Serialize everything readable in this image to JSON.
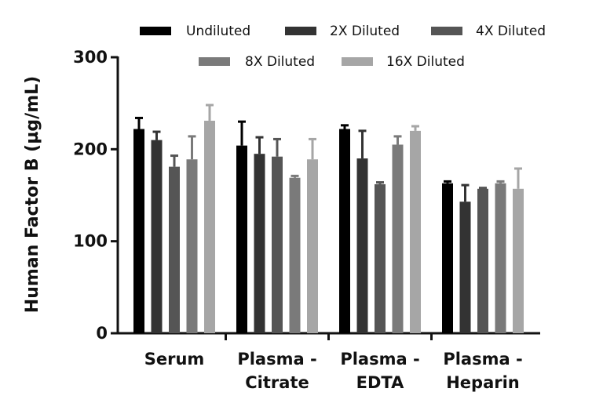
{
  "chart_data": {
    "type": "bar",
    "title": "",
    "xlabel": "",
    "ylabel": "Human Factor B (µg/mL)",
    "ylim": [
      0,
      300
    ],
    "yticks": [
      "0",
      "100",
      "200",
      "300"
    ],
    "categories": [
      [
        "Serum"
      ],
      [
        "Plasma -",
        "Citrate"
      ],
      [
        "Plasma -",
        "EDTA"
      ],
      [
        "Plasma -",
        "Heparin"
      ]
    ],
    "series": [
      {
        "name": "Undiluted",
        "color": "#000000",
        "values": [
          222,
          204,
          222,
          163
        ],
        "errors": [
          12,
          26,
          4,
          2
        ]
      },
      {
        "name": "2X Diluted",
        "color": "#333333",
        "values": [
          210,
          195,
          190,
          143
        ],
        "errors": [
          9,
          18,
          30,
          18
        ]
      },
      {
        "name": "4X Diluted",
        "color": "#555555",
        "values": [
          181,
          192,
          162,
          157
        ],
        "errors": [
          12,
          19,
          2,
          1
        ]
      },
      {
        "name": "8X Diluted",
        "color": "#7a7a7a",
        "values": [
          189,
          169,
          205,
          163
        ],
        "errors": [
          25,
          2,
          9,
          2
        ]
      },
      {
        "name": "16X Diluted",
        "color": "#a6a6a6",
        "values": [
          231,
          189,
          220,
          157
        ],
        "errors": [
          17,
          22,
          5,
          22
        ]
      }
    ],
    "legend_position": "top"
  }
}
